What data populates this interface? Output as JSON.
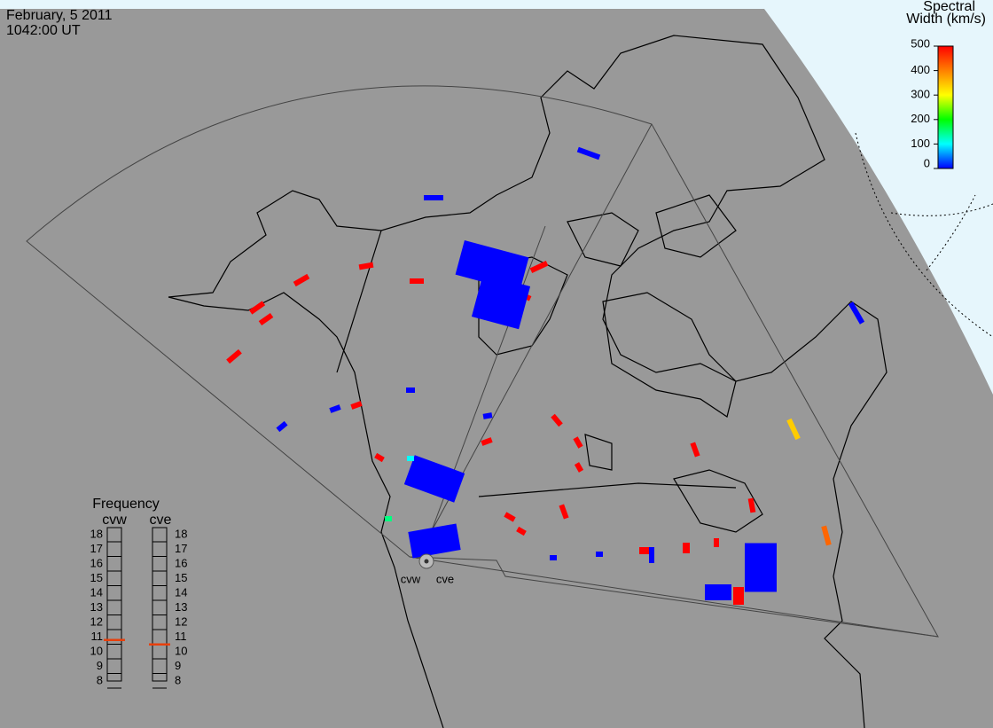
{
  "header": {
    "date": "February, 5 2011",
    "time": "1042:00 UT"
  },
  "colorbar": {
    "title_line1": "Spectral",
    "title_line2": "Width (km/s)",
    "range": [
      0,
      500
    ],
    "ticks": [
      0,
      100,
      200,
      300,
      400,
      500
    ]
  },
  "frequency": {
    "title": "Frequency",
    "radars": [
      "cvw",
      "cve"
    ],
    "range": [
      8,
      18
    ],
    "ticks": [
      8,
      9,
      10,
      11,
      12,
      13,
      14,
      15,
      16,
      17,
      18
    ],
    "values": [
      10.8,
      10.5
    ],
    "color": "#e8400c"
  },
  "stations": [
    "cvw",
    "cve"
  ],
  "echo_widths": [
    500,
    500,
    500,
    500,
    500,
    500,
    500,
    0,
    0,
    500,
    500,
    0,
    0,
    0,
    500,
    0,
    500,
    500,
    500,
    500,
    500,
    500,
    500,
    340,
    420,
    0,
    0,
    0,
    500,
    0,
    500,
    0,
    500,
    0,
    500,
    500,
    0,
    500,
    0,
    0,
    100,
    150,
    500,
    0,
    500
  ]
}
